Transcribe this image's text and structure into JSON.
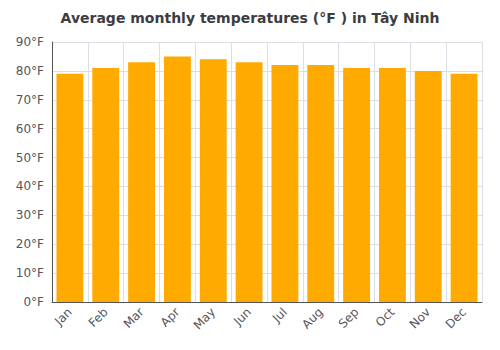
{
  "chart_data": {
    "type": "bar",
    "title": "Average monthly temperatures (°F ) in Tây Ninh",
    "categories": [
      "Jan",
      "Feb",
      "Mar",
      "Apr",
      "May",
      "Jun",
      "Jul",
      "Aug",
      "Sep",
      "Oct",
      "Nov",
      "Dec"
    ],
    "values": [
      79,
      81,
      83,
      85,
      84,
      83,
      82,
      82,
      81,
      81,
      80,
      79
    ],
    "color": "#FFAA00",
    "ylim": [
      0,
      90
    ],
    "yticks": [
      {
        "value": 0,
        "label": "0°F"
      },
      {
        "value": 10,
        "label": "10°F"
      },
      {
        "value": 20,
        "label": "20°F"
      },
      {
        "value": 30,
        "label": "30°F"
      },
      {
        "value": 40,
        "label": "40°F"
      },
      {
        "value": 50,
        "label": "50°F"
      },
      {
        "value": 60,
        "label": "60°F"
      },
      {
        "value": 70,
        "label": "70°F"
      },
      {
        "value": 80,
        "label": "80°F"
      },
      {
        "value": 90,
        "label": "90°F"
      }
    ],
    "grid": true
  }
}
